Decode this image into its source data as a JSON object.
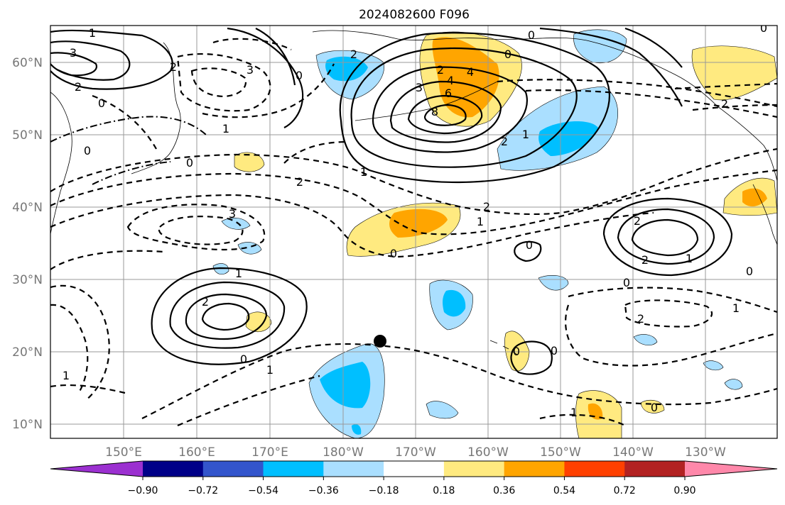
{
  "title": "2024082600 F096",
  "lat_labels": [
    "60°N",
    "50°N",
    "40°N",
    "30°N",
    "20°N",
    "10°N"
  ],
  "lon_labels": [
    "150°E",
    "160°E",
    "170°E",
    "180°W",
    "170°W",
    "160°W",
    "150°W",
    "140°W",
    "130°W"
  ],
  "colorbar": {
    "tick_labels": [
      "−0.90",
      "−0.72",
      "−0.54",
      "−0.36",
      "−0.18",
      "0.18",
      "0.36",
      "0.54",
      "0.72",
      "0.90"
    ],
    "colors": [
      "#9b30d0",
      "#000088",
      "#3355cc",
      "#00bfff",
      "#aadfff",
      "#ffffff",
      "#ffea80",
      "#ffa500",
      "#ff4000",
      "#b22222",
      "#ff88aa"
    ]
  },
  "contour_labels": [
    "1",
    "3",
    "2",
    "0",
    "2",
    "3",
    "0",
    "0",
    "1",
    "0",
    "0",
    "3",
    "4",
    "2",
    "6",
    "8",
    "4",
    "2",
    "0",
    "0",
    "2",
    "1",
    "2",
    "1",
    "2",
    "3",
    "2",
    "0",
    "2",
    "1",
    "1",
    "2",
    "0",
    "0",
    "2",
    "1",
    "0",
    "0",
    "2",
    "1",
    "1",
    "1",
    "0",
    "1",
    "0",
    "0"
  ],
  "marker": {
    "name": "point-marker",
    "color": "#000000"
  }
}
